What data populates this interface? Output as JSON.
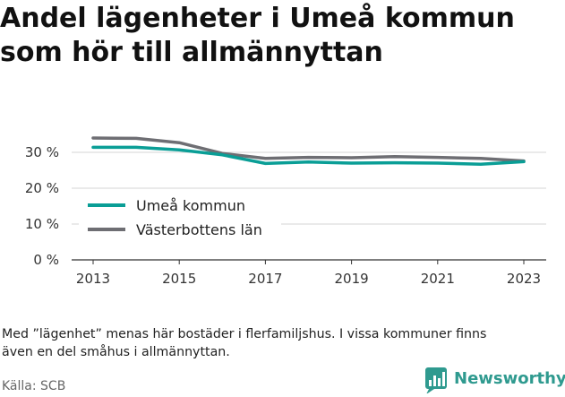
{
  "title_lines": [
    "Andel lägenheter i Umeå kommun",
    "som hör till allmännyttan"
  ],
  "note_lines": [
    "Med ”lägenhet” menas här bostäder i flerfamiljshus. I vissa kommuner finns",
    "även en del småhus i allmännyttan."
  ],
  "source": "Källa: SCB",
  "brand": {
    "name": "Newsworthy",
    "color": "#2f9a8f",
    "icon": "newsworthy-bar-chart-icon"
  },
  "chart_data": {
    "type": "line",
    "x": [
      2013,
      2014,
      2015,
      2016,
      2017,
      2018,
      2019,
      2020,
      2021,
      2022,
      2023
    ],
    "x_ticks": [
      "2013",
      "2015",
      "2017",
      "2019",
      "2021",
      "2023"
    ],
    "y_ticks": [
      "0 %",
      "10 %",
      "20 %",
      "30 %"
    ],
    "ylim": [
      0,
      35
    ],
    "xlim": [
      2013,
      2023
    ],
    "grid": true,
    "legend_position": "left",
    "series": [
      {
        "name": "Umeå kommun",
        "color": "#0a9e96",
        "values": [
          31.4,
          31.4,
          30.7,
          29.3,
          26.9,
          27.3,
          27.0,
          27.1,
          27.0,
          26.7,
          27.4
        ]
      },
      {
        "name": "Västerbottens län",
        "color": "#6e6e73",
        "values": [
          34.0,
          33.9,
          32.7,
          29.7,
          28.3,
          28.6,
          28.5,
          28.8,
          28.6,
          28.3,
          27.6
        ]
      }
    ]
  }
}
